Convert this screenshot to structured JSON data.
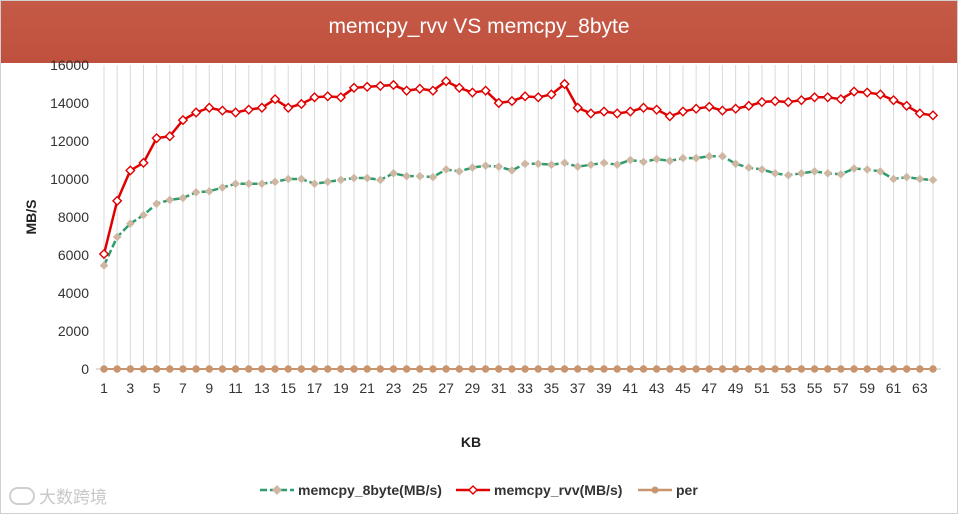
{
  "chart_data": {
    "type": "line",
    "title": "memcpy_rvv VS memcpy_8byte",
    "xlabel": "KB",
    "ylabel": "MB/S",
    "ylim": [
      0,
      16000
    ],
    "yticks": [
      0,
      2000,
      4000,
      6000,
      8000,
      10000,
      12000,
      14000,
      16000
    ],
    "xtick_labels": [
      "1",
      "3",
      "5",
      "7",
      "9",
      "11",
      "13",
      "15",
      "17",
      "19",
      "21",
      "23",
      "25",
      "27",
      "29",
      "31",
      "33",
      "35",
      "37",
      "39",
      "41",
      "43",
      "45",
      "47",
      "49",
      "51",
      "53",
      "55",
      "57",
      "59",
      "61",
      "63"
    ],
    "x": [
      1,
      2,
      3,
      4,
      5,
      6,
      7,
      8,
      9,
      10,
      11,
      12,
      13,
      14,
      15,
      16,
      17,
      18,
      19,
      20,
      21,
      22,
      23,
      24,
      25,
      26,
      27,
      28,
      29,
      30,
      31,
      32,
      33,
      34,
      35,
      36,
      37,
      38,
      39,
      40,
      41,
      42,
      43,
      44,
      45,
      46,
      47,
      48,
      49,
      50,
      51,
      52,
      53,
      54,
      55,
      56,
      57,
      58,
      59,
      60,
      61,
      62,
      63,
      64
    ],
    "grid": "vertical",
    "legend": "bottom",
    "series": [
      {
        "name": "memcpy_8byte(MB/s)",
        "color": "#2e9d6e",
        "marker_color": "#cfb7a3",
        "values": [
          5450,
          6950,
          7650,
          8100,
          8700,
          8900,
          9000,
          9300,
          9350,
          9550,
          9750,
          9750,
          9750,
          9850,
          10000,
          10000,
          9750,
          9850,
          9950,
          10050,
          10050,
          9950,
          10300,
          10150,
          10150,
          10100,
          10500,
          10400,
          10600,
          10700,
          10650,
          10450,
          10800,
          10800,
          10750,
          10850,
          10650,
          10750,
          10850,
          10750,
          11000,
          10900,
          11050,
          10950,
          11100,
          11100,
          11200,
          11200,
          10800,
          10600,
          10500,
          10300,
          10200,
          10300,
          10400,
          10300,
          10250,
          10550,
          10500,
          10400,
          10000,
          10100,
          10000,
          9950
        ]
      },
      {
        "name": "memcpy_rvv(MB/s)",
        "color": "#e00000",
        "marker_color": "#ffffff",
        "values": [
          6050,
          8850,
          10450,
          10850,
          12150,
          12250,
          13100,
          13500,
          13750,
          13600,
          13500,
          13650,
          13750,
          14200,
          13750,
          13950,
          14300,
          14350,
          14300,
          14800,
          14850,
          14900,
          14950,
          14650,
          14750,
          14650,
          15150,
          14800,
          14550,
          14650,
          14000,
          14100,
          14350,
          14300,
          14450,
          15000,
          13750,
          13450,
          13550,
          13450,
          13550,
          13750,
          13650,
          13300,
          13550,
          13700,
          13800,
          13600,
          13700,
          13850,
          14050,
          14100,
          14050,
          14150,
          14300,
          14300,
          14200,
          14600,
          14550,
          14450,
          14150,
          13850,
          13450,
          13350
        ]
      },
      {
        "name": "per",
        "color": "#c9956e",
        "marker_color": "#c9956e",
        "values": [
          0,
          0,
          0,
          0,
          0,
          0,
          0,
          0,
          0,
          0,
          0,
          0,
          0,
          0,
          0,
          0,
          0,
          0,
          0,
          0,
          0,
          0,
          0,
          0,
          0,
          0,
          0,
          0,
          0,
          0,
          0,
          0,
          0,
          0,
          0,
          0,
          0,
          0,
          0,
          0,
          0,
          0,
          0,
          0,
          0,
          0,
          0,
          0,
          0,
          0,
          0,
          0,
          0,
          0,
          0,
          0,
          0,
          0,
          0,
          0,
          0,
          0,
          0,
          0
        ]
      }
    ]
  },
  "watermark": {
    "text": "大数跨境"
  }
}
